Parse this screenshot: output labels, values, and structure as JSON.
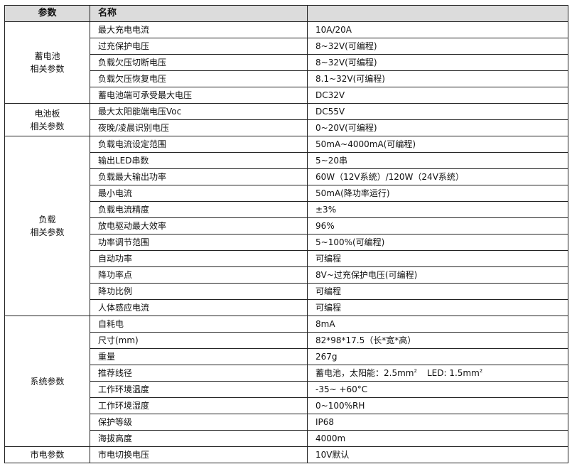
{
  "header": {
    "col1": "参数",
    "col2": "名称",
    "col3": ""
  },
  "groups": [
    {
      "label_line1": "蓄电池",
      "label_line2": "相关参数",
      "rows": [
        {
          "name": "最大充电电流",
          "value": "10A/20A"
        },
        {
          "name": "过充保护电压",
          "value": "8~32V(可编程)"
        },
        {
          "name": "负载欠压切断电压",
          "value": "8~32V(可编程)"
        },
        {
          "name": "负载欠压恢复电压",
          "value": "8.1~32V(可编程)"
        },
        {
          "name": "蓄电池端可承受最大电压",
          "value": "DC32V"
        }
      ]
    },
    {
      "label_line1": "电池板",
      "label_line2": "相关参数",
      "rows": [
        {
          "name": "最大太阳能端电压Voc",
          "value": "DC55V"
        },
        {
          "name": "夜晚/凌晨识别电压",
          "value": "0~20V(可编程)"
        }
      ]
    },
    {
      "label_line1": "负载",
      "label_line2": "相关参数",
      "rows": [
        {
          "name": "负载电流设定范围",
          "value": "50mA~4000mA(可编程)"
        },
        {
          "name": "输出LED串数",
          "value": "5~20串"
        },
        {
          "name": "负载最大输出功率",
          "value": "60W（12V系统）/120W（24V系统）"
        },
        {
          "name": "最小电流",
          "value": "50mA(降功率运行)"
        },
        {
          "name": "负载电流精度",
          "value": "±3%"
        },
        {
          "name": "放电驱动最大效率",
          "value": "96%"
        },
        {
          "name": "功率调节范围",
          "value": "5~100%(可编程)"
        },
        {
          "name": "自动功率",
          "value": "可编程"
        },
        {
          "name": "降功率点",
          "value": "8V~过充保护电压(可编程)"
        },
        {
          "name": "降功比例",
          "value": "可编程"
        },
        {
          "name": "人体感应电流",
          "value": "可编程"
        }
      ]
    },
    {
      "label_line1": "系统参数",
      "label_line2": "",
      "rows": [
        {
          "name": "自耗电",
          "value": "8mA"
        },
        {
          "name": "尺寸(mm)",
          "value": "82*98*17.5（长*宽*高）"
        },
        {
          "name": "重量",
          "value": "267g"
        },
        {
          "name": "推荐线径",
          "value": "蓄电池，太阳能：2.5mm",
          "sup1": "2",
          "value2": "LED: 1.5mm",
          "sup2": "2"
        },
        {
          "name": "工作环境温度",
          "value": "-35~ +60°C"
        },
        {
          "name": "工作环境湿度",
          "value": "0~100%RH"
        },
        {
          "name": "保护等级",
          "value": "IP68"
        },
        {
          "name": "海拔高度",
          "value": "4000m"
        }
      ]
    },
    {
      "label_line1": "市电参数",
      "label_line2": "",
      "rows": [
        {
          "name": "市电切换电压",
          "value": "10V默认"
        }
      ]
    }
  ]
}
